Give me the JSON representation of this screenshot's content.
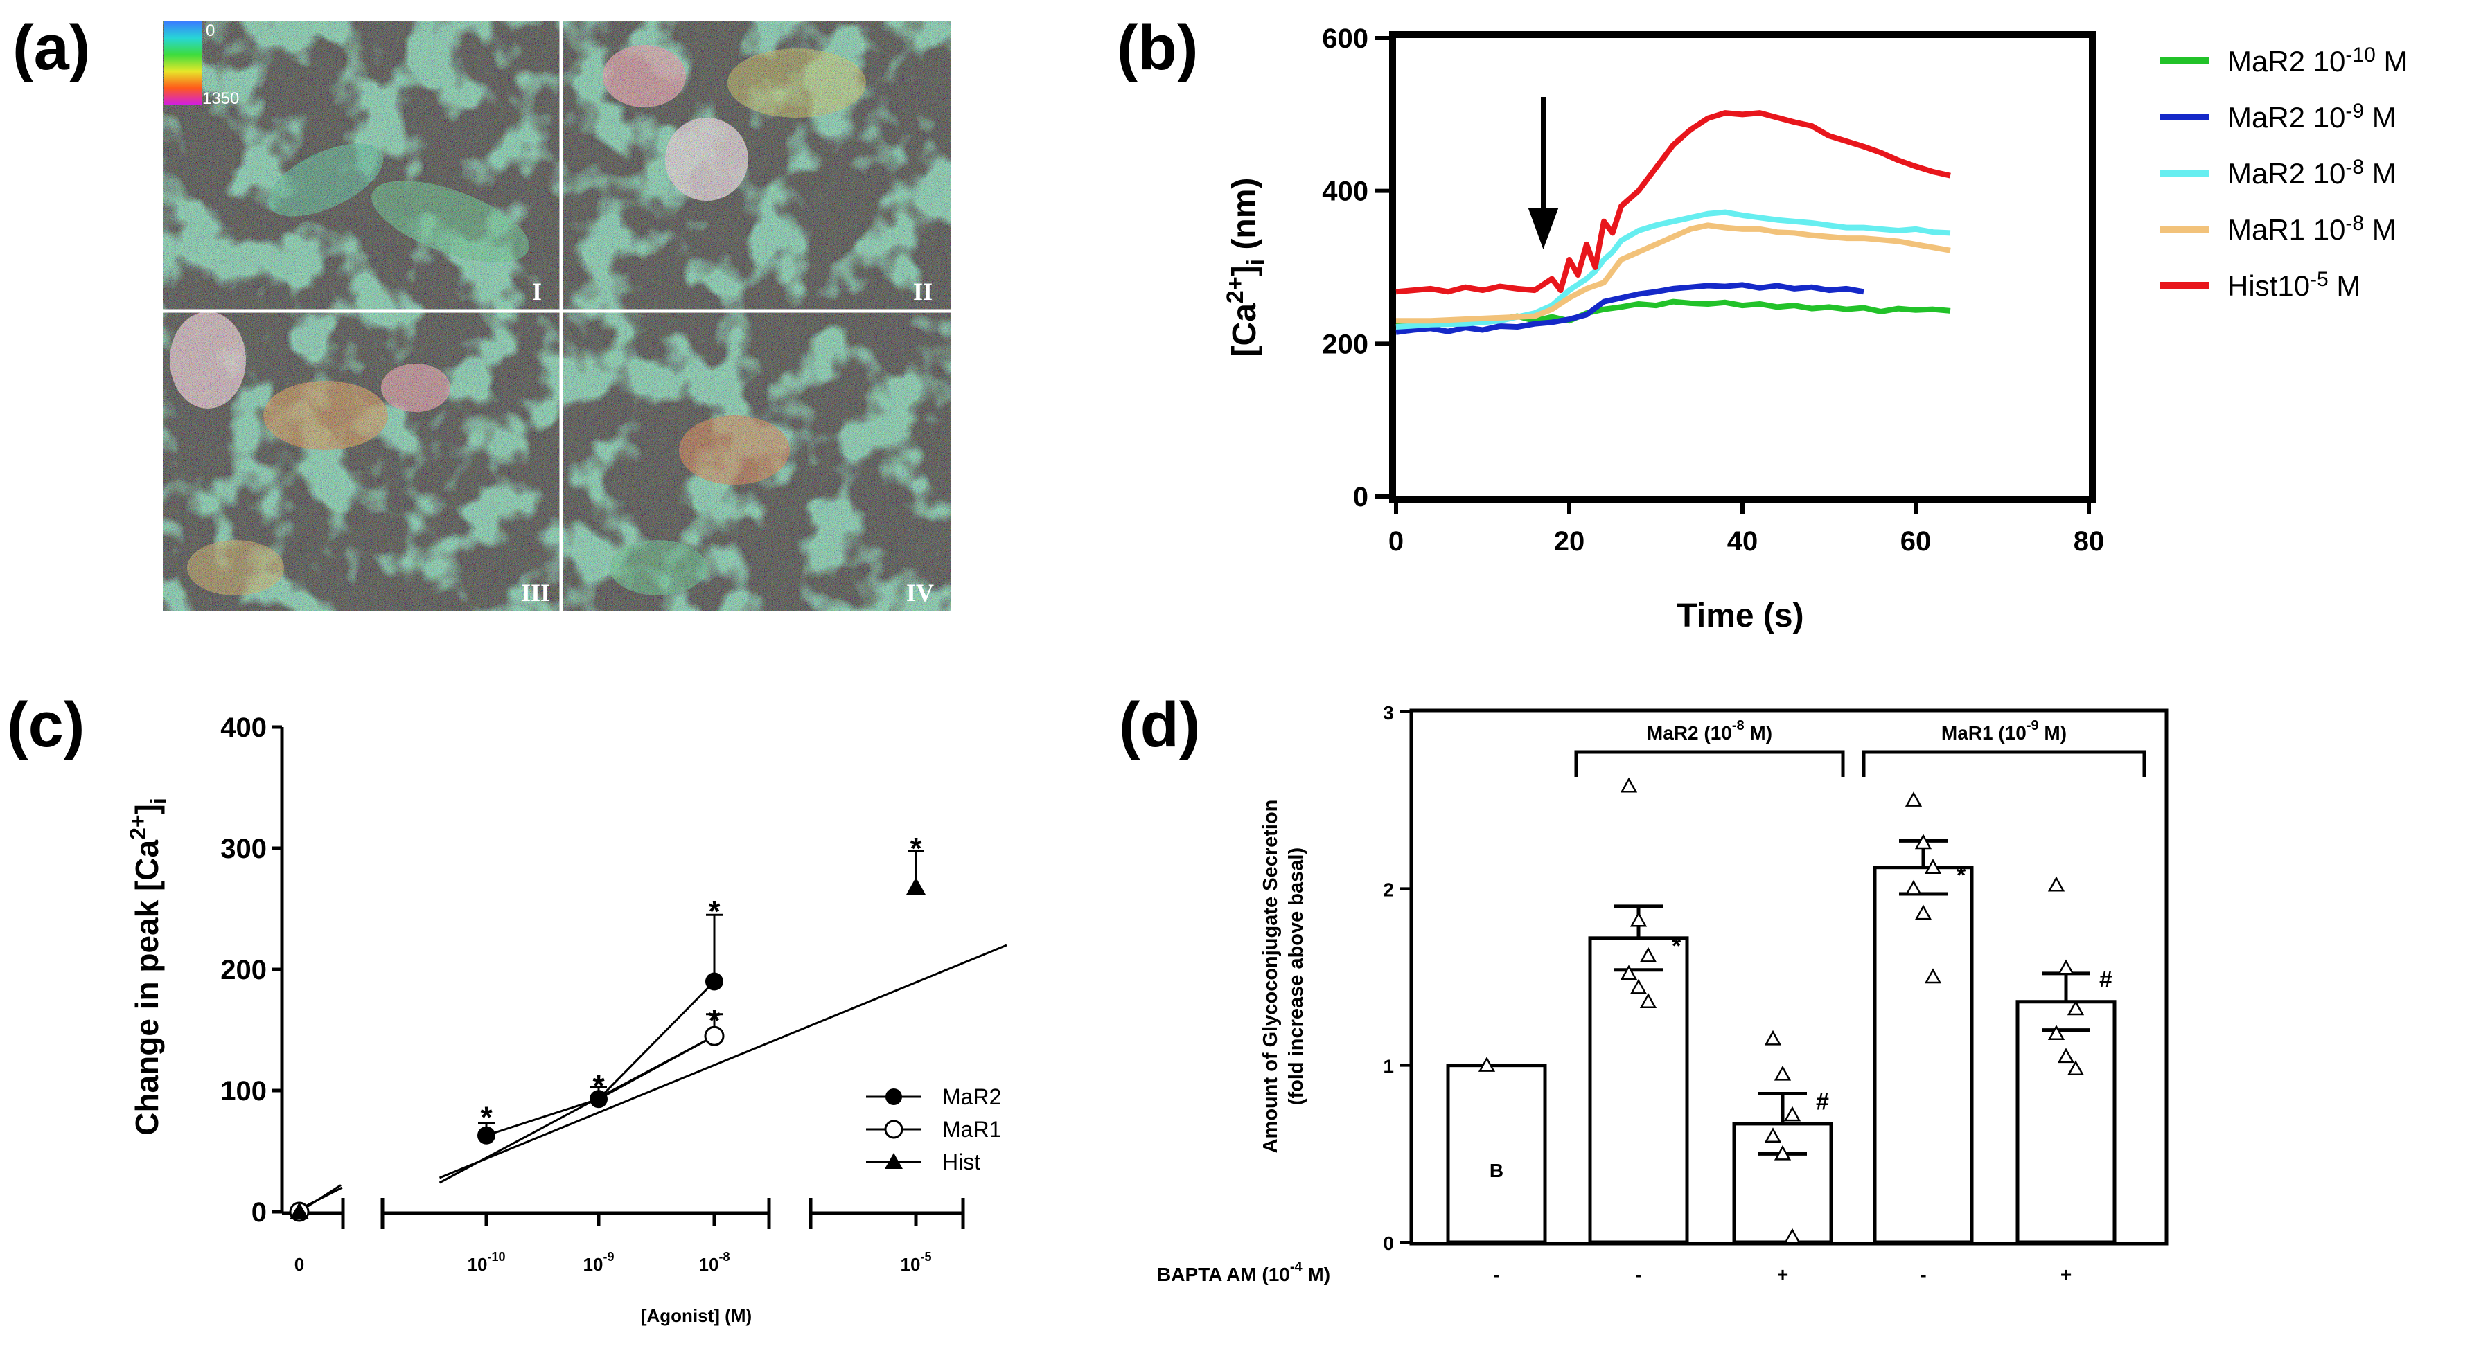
{
  "panels": {
    "a": {
      "letter": "(a)"
    },
    "b": {
      "letter": "(b)"
    },
    "c": {
      "letter": "(c)"
    },
    "d": {
      "letter": "(d)"
    }
  },
  "chart_data": [
    {
      "id": "a",
      "type": "image",
      "colorbar": {
        "min_label": "0",
        "max_label": "1350"
      },
      "quadrant_labels": [
        "I",
        "II",
        "III",
        "IV"
      ]
    },
    {
      "id": "b",
      "type": "line",
      "xlabel": "Time (s)",
      "ylabel_main": "[Ca",
      "ylabel_sup": "2+",
      "ylabel_close": "]",
      "ylabel_sub": "i",
      "ylabel_unit": " (nm)",
      "xlim": [
        0,
        80
      ],
      "ylim": [
        0,
        600
      ],
      "xticks": [
        "0",
        "20",
        "40",
        "60",
        "80"
      ],
      "yticks": [
        "0",
        "200",
        "400",
        "600"
      ],
      "arrow_at_time": 17,
      "series": [
        {
          "name_base": "MaR2 10",
          "name_exp": "-10",
          "name_unit": " M",
          "color": "#22c229",
          "x": [
            0,
            4,
            8,
            12,
            14,
            16,
            18,
            20,
            22,
            24,
            26,
            28,
            30,
            32,
            34,
            36,
            38,
            40,
            42,
            44,
            46,
            48,
            50,
            52,
            54,
            56,
            58,
            60,
            62,
            64
          ],
          "y": [
            225,
            226,
            228,
            232,
            236,
            230,
            235,
            230,
            240,
            245,
            248,
            252,
            250,
            255,
            253,
            252,
            254,
            250,
            252,
            248,
            250,
            246,
            248,
            245,
            247,
            242,
            246,
            244,
            245,
            243
          ]
        },
        {
          "name_base": "MaR2 10",
          "name_exp": "-9",
          "name_unit": " M",
          "color": "#1529c8",
          "x": [
            0,
            2,
            4,
            6,
            8,
            10,
            12,
            14,
            16,
            18,
            20,
            22,
            24,
            26,
            28,
            30,
            32,
            34,
            36,
            38,
            40,
            42,
            44,
            46,
            48,
            50,
            52,
            54
          ],
          "y": [
            215,
            218,
            220,
            216,
            221,
            218,
            223,
            222,
            226,
            228,
            232,
            238,
            255,
            260,
            265,
            268,
            272,
            274,
            276,
            275,
            277,
            273,
            276,
            272,
            274,
            270,
            272,
            268
          ]
        },
        {
          "name_base": "MaR2 10",
          "name_exp": "-8",
          "name_unit": " M",
          "color": "#66eef0",
          "x": [
            0,
            4,
            8,
            12,
            16,
            18,
            20,
            22,
            23,
            24,
            25,
            26,
            28,
            30,
            32,
            34,
            36,
            38,
            40,
            42,
            44,
            46,
            48,
            50,
            52,
            54,
            56,
            58,
            60,
            62,
            64
          ],
          "y": [
            222,
            225,
            226,
            230,
            240,
            250,
            270,
            285,
            295,
            310,
            320,
            335,
            348,
            355,
            360,
            365,
            370,
            372,
            368,
            365,
            362,
            360,
            358,
            355,
            352,
            352,
            350,
            348,
            350,
            346,
            345
          ]
        },
        {
          "name_base": "MaR1 10",
          "name_exp": "-8",
          "name_unit": " M",
          "color": "#f2c27a",
          "x": [
            0,
            4,
            8,
            12,
            16,
            18,
            20,
            22,
            24,
            25,
            26,
            28,
            30,
            32,
            34,
            36,
            38,
            40,
            42,
            44,
            46,
            48,
            50,
            52,
            54,
            56,
            58,
            60,
            62,
            64
          ],
          "y": [
            230,
            230,
            232,
            234,
            236,
            245,
            260,
            272,
            280,
            295,
            310,
            320,
            330,
            340,
            350,
            355,
            352,
            350,
            350,
            346,
            345,
            342,
            340,
            338,
            338,
            336,
            334,
            330,
            326,
            322
          ]
        },
        {
          "name_base": "Hist10",
          "name_exp": "-5",
          "name_unit": " M",
          "color": "#e8161c",
          "x": [
            0,
            2,
            4,
            6,
            8,
            10,
            12,
            14,
            16,
            18,
            19,
            20,
            21,
            22,
            23,
            24,
            25,
            26,
            28,
            30,
            32,
            34,
            36,
            38,
            40,
            42,
            44,
            46,
            48,
            50,
            52,
            54,
            56,
            58,
            60,
            62,
            64
          ],
          "y": [
            268,
            270,
            272,
            268,
            274,
            270,
            275,
            272,
            270,
            285,
            270,
            310,
            290,
            330,
            300,
            360,
            345,
            380,
            400,
            430,
            460,
            480,
            495,
            502,
            500,
            502,
            496,
            490,
            485,
            472,
            465,
            458,
            450,
            440,
            432,
            425,
            420
          ]
        }
      ]
    },
    {
      "id": "c",
      "type": "line",
      "xlabel": "[Agonist] (M)",
      "ylabel_main": "Change in peak [Ca",
      "ylabel_sup": "2+",
      "ylabel_close": "]",
      "ylabel_sub": "i",
      "ylim": [
        0,
        400
      ],
      "yticks": [
        "0",
        "100",
        "200",
        "300",
        "400"
      ],
      "categories": [
        {
          "base": "0",
          "exp": ""
        },
        {
          "base": "10",
          "exp": "-10"
        },
        {
          "base": "10",
          "exp": "-9"
        },
        {
          "base": "10",
          "exp": "-8"
        },
        {
          "base": "10",
          "exp": "-5"
        }
      ],
      "series": [
        {
          "name": "MaR2",
          "marker": "filled-circle",
          "values": [
            0,
            63,
            93,
            190,
            null
          ],
          "errors": [
            0,
            10,
            10,
            55,
            null
          ]
        },
        {
          "name": "MaR1",
          "marker": "open-circle",
          "values": [
            0,
            null,
            null,
            145,
            null
          ],
          "errors": [
            0,
            null,
            null,
            18,
            null
          ]
        },
        {
          "name": "Hist",
          "marker": "filled-triangle",
          "values": [
            0,
            null,
            null,
            null,
            268
          ],
          "errors": [
            0,
            null,
            null,
            null,
            30
          ]
        }
      ],
      "significance": [
        {
          "cat": 1,
          "value": 82,
          "label": "*"
        },
        {
          "cat": 2,
          "value": 108,
          "label": "*"
        },
        {
          "cat": 3,
          "value": 252,
          "label": "*"
        },
        {
          "cat": 3,
          "value": 162,
          "label": "*"
        },
        {
          "cat": 4,
          "value": 304,
          "label": "*"
        }
      ],
      "fit_lines": [
        {
          "from_cat": 0.75,
          "from_value": 28,
          "to_cat": 4.45,
          "to_value": 220
        },
        {
          "from_cat": 0.75,
          "from_value": 24,
          "to_cat": 3.0,
          "to_value": 145
        }
      ]
    },
    {
      "id": "d",
      "type": "bar",
      "ylabel_line1": "Amount of Glycoconjugate Secretion",
      "ylabel_line2": "(fold increase above basal)",
      "ylim": [
        0,
        3
      ],
      "yticks": [
        "0",
        "1",
        "2",
        "3"
      ],
      "categories": [
        "B",
        "MaR2",
        "MaR2 + BAPTA",
        "MaR1",
        "MaR1 + BAPTA"
      ],
      "values": [
        1.0,
        1.72,
        0.67,
        2.12,
        1.36
      ],
      "errors": [
        0,
        0.18,
        0.17,
        0.15,
        0.16
      ],
      "points": [
        [
          1.0
        ],
        [
          2.58,
          1.82,
          1.62,
          1.52,
          1.44,
          1.36
        ],
        [
          1.15,
          0.95,
          0.72,
          0.6,
          0.5,
          0.03
        ],
        [
          2.5,
          2.26,
          2.12,
          2.0,
          1.86,
          1.5
        ],
        [
          2.02,
          1.55,
          1.32,
          1.18,
          1.05,
          0.98
        ]
      ],
      "markers": [
        "",
        "*",
        "#",
        "*",
        "#"
      ],
      "bar_label": "B",
      "group_labels": [
        {
          "base": "MaR2 (10",
          "exp": "-8",
          "unit": " M)"
        },
        {
          "base": "MaR1 (10",
          "exp": "-9",
          "unit": " M)"
        }
      ],
      "bapta": {
        "base": "BAPTA AM (10",
        "exp": "-4",
        "unit": " M)",
        "values": [
          "-",
          "-",
          "+",
          "-",
          "+"
        ]
      }
    }
  ]
}
